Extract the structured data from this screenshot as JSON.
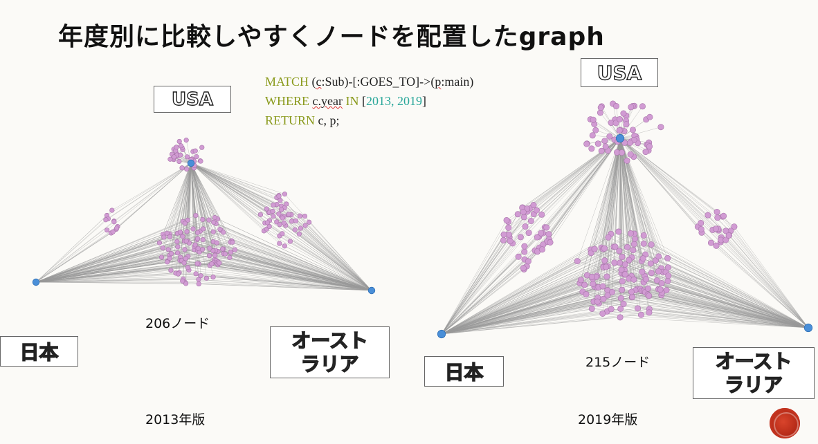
{
  "title": "年度別に比較しやすくノードを配置したgraph",
  "query": {
    "line1_kw": "MATCH",
    "line1_a": " (",
    "line1_b": "c",
    "line1_c": ":Sub)-[:GOES_TO]->(",
    "line1_d": "p",
    "line1_e": ":main)",
    "line2_kw": "WHERE",
    "line2_a": " ",
    "line2_b": "c.year",
    "line2_kw2": " IN",
    "line2_c": " [",
    "line2_nums": "2013, 2019",
    "line2_d": "]",
    "line3_kw": "RETURN",
    "line3_a": " c, p;"
  },
  "left_graph": {
    "usa_label": "USA",
    "japan_label": "日本",
    "australia_label": "オーストラリア",
    "australia_line1": "オースト",
    "australia_line2": "ラリア",
    "node_count": "206ノード",
    "year_label": "2013年版"
  },
  "right_graph": {
    "usa_label": "USA",
    "japan_label": "日本",
    "australia_line1": "オースト",
    "australia_line2": "ラリア",
    "node_count": "215ノード",
    "year_label": "2019年版"
  },
  "colors": {
    "main_node": "#4a8fd8",
    "sub_node": "#d19bd3",
    "sub_node_stroke": "#a673a8",
    "edge": "#9a9a9a",
    "keyword": "#8a9a1c",
    "number": "#2aa79a"
  }
}
